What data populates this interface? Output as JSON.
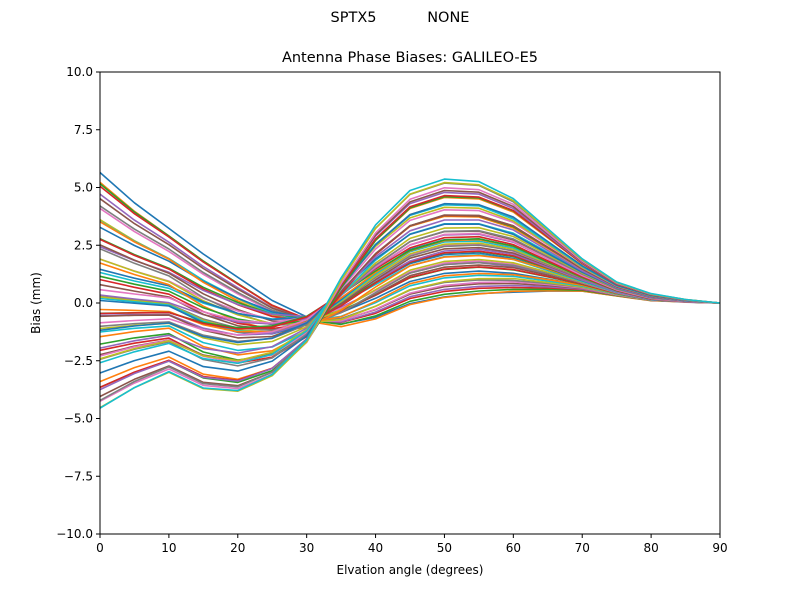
{
  "figure": {
    "suptitle_left": "SPTX5",
    "suptitle_right": "NONE",
    "title": "Antenna Phase Biases: GALILEO-E5"
  },
  "chart_data": {
    "type": "line",
    "title": "Antenna Phase Biases: GALILEO-E5",
    "suptitle": "SPTX5            NONE",
    "xlabel": "Elvation angle (degrees)",
    "ylabel": "Bias (mm)",
    "xlim": [
      0,
      90
    ],
    "ylim": [
      -10.0,
      10.0
    ],
    "xticks": [
      0,
      10,
      20,
      30,
      40,
      50,
      60,
      70,
      80,
      90
    ],
    "yticks": [
      -10.0,
      -7.5,
      -5.0,
      -2.5,
      0.0,
      2.5,
      5.0,
      7.5,
      10.0
    ],
    "ytick_labels": [
      "−10.0",
      "−7.5",
      "−5.0",
      "−2.5",
      "0.0",
      "2.5",
      "5.0",
      "7.5",
      "10.0"
    ],
    "grid": false,
    "legend": "none",
    "x": [
      0,
      5,
      10,
      15,
      20,
      25,
      30,
      35,
      40,
      45,
      50,
      55,
      60,
      65,
      70,
      75,
      80,
      85,
      90
    ],
    "color_cycle": [
      "#1f77b4",
      "#ff7f0e",
      "#2ca02c",
      "#d62728",
      "#9467bd",
      "#8c564b",
      "#e377c2",
      "#7f7f7f",
      "#bcbd22",
      "#17becf"
    ],
    "series_count": 60,
    "series_anchors": {
      "high_start_family": {
        "description": "curves starting ~+5.5 at 0 deg, decreasing to ~-1.0 near 35 deg, rising to ~+0.5 near 60 deg, 0 at 90 deg",
        "values": [
          5.5,
          4.2,
          3.1,
          2.0,
          1.0,
          0.0,
          -0.7,
          -1.0,
          -0.7,
          -0.1,
          0.2,
          0.35,
          0.45,
          0.5,
          0.5,
          0.3,
          0.1,
          0.05,
          0.0
        ]
      },
      "low_start_family": {
        "description": "curves starting ~-4.7 at 0 deg, dipping to ~-3.9 near 20 deg, peaking ~+5.3 near 50 deg, 0 at 90 deg",
        "values": [
          -4.7,
          -3.8,
          -3.1,
          -3.8,
          -3.9,
          -3.2,
          -1.7,
          1.0,
          3.3,
          4.8,
          5.3,
          5.2,
          4.5,
          3.2,
          1.9,
          0.9,
          0.4,
          0.15,
          0.0
        ]
      },
      "flat_family": {
        "description": "curves near 0 to -1 at low elevation, modest bump ~+2.5 near 55 deg",
        "values": [
          -1.0,
          -0.8,
          -0.6,
          -0.4,
          -0.2,
          0.1,
          0.4,
          0.8,
          1.3,
          1.9,
          2.4,
          2.5,
          2.2,
          1.5,
          0.9,
          0.4,
          0.05,
          -0.05,
          0.0
        ]
      }
    }
  }
}
